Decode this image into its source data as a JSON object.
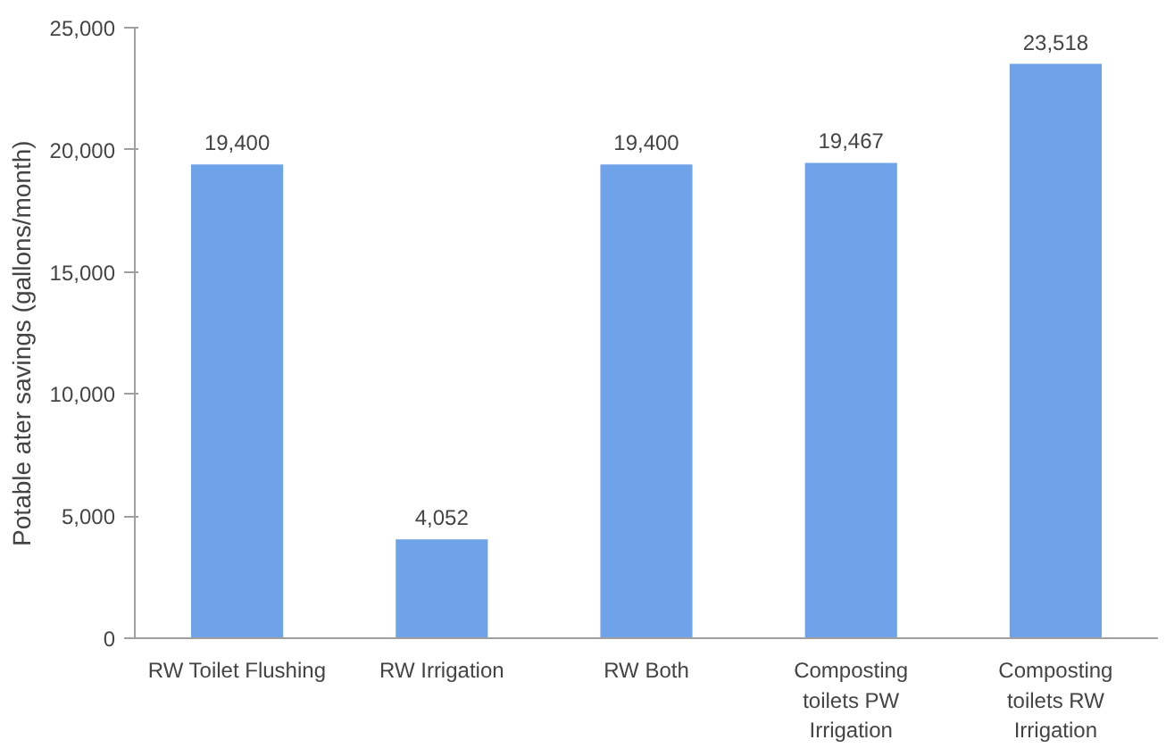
{
  "chart_data": {
    "type": "bar",
    "ylabel": "Potable    ater savings (gallons/month)",
    "categories": [
      "RW Toilet Flushing",
      "RW Irrigation",
      "RW Both",
      "Composting\ntoilets PW\nIrrigation",
      "Composting\ntoilets RW\nIrrigation"
    ],
    "values": [
      19400,
      4052,
      19400,
      19467,
      23518
    ],
    "color": "#6ea3ea",
    "ylim": [
      0,
      25000
    ],
    "yticks": [
      {
        "value": 0,
        "label": "0"
      },
      {
        "value": 5000,
        "label": "5,000"
      },
      {
        "value": 10000,
        "label": "10,000"
      },
      {
        "value": 15000,
        "label": "15,000"
      },
      {
        "value": 20000,
        "label": "20,000"
      },
      {
        "value": 25000,
        "label": "25,000"
      }
    ],
    "value_labels": [
      "19,400",
      "4,052",
      "19,400",
      "19,467",
      "23,518"
    ],
    "grid": false
  }
}
